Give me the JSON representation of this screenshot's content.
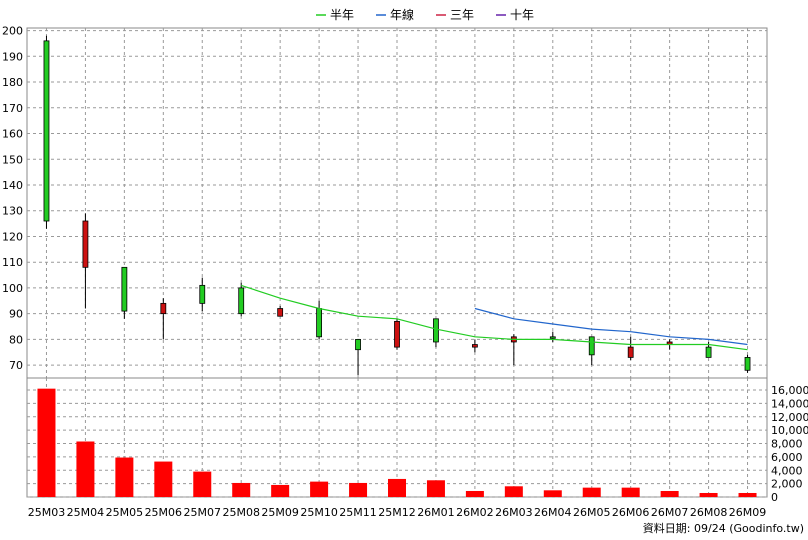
{
  "chart_data": {
    "type": "candlestick",
    "legend": [
      {
        "name": "半年",
        "color": "#22cc22"
      },
      {
        "name": "年線",
        "color": "#2266cc"
      },
      {
        "name": "三年",
        "color": "#cc2244"
      },
      {
        "name": "十年",
        "color": "#6622aa"
      }
    ],
    "categories": [
      "25M03",
      "25M04",
      "25M05",
      "25M06",
      "25M07",
      "25M08",
      "25M09",
      "25M10",
      "25M11",
      "25M12",
      "26M01",
      "26M02",
      "26M03",
      "26M04",
      "26M05",
      "26M06",
      "26M07",
      "26M08",
      "26M09"
    ],
    "ohlc": [
      {
        "open": 126,
        "high": 198,
        "low": 123,
        "close": 196
      },
      {
        "open": 126,
        "high": 129,
        "low": 92,
        "close": 108
      },
      {
        "open": 91,
        "high": 108,
        "low": 88,
        "close": 108
      },
      {
        "open": 94,
        "high": 96,
        "low": 80,
        "close": 90
      },
      {
        "open": 94,
        "high": 104,
        "low": 91,
        "close": 101
      },
      {
        "open": 90,
        "high": 102,
        "low": 89,
        "close": 100
      },
      {
        "open": 92,
        "high": 93,
        "low": 89,
        "close": 89
      },
      {
        "open": 81,
        "high": 95,
        "low": 80,
        "close": 92
      },
      {
        "open": 76,
        "high": 80,
        "low": 66,
        "close": 80
      },
      {
        "open": 87,
        "high": 88,
        "low": 76,
        "close": 77
      },
      {
        "open": 79,
        "high": 88,
        "low": 77,
        "close": 88
      },
      {
        "open": 78,
        "high": 80,
        "low": 75,
        "close": 77
      },
      {
        "open": 81,
        "high": 82,
        "low": 70,
        "close": 79
      },
      {
        "open": 81,
        "high": 83,
        "low": 79,
        "close": 81
      },
      {
        "open": 74,
        "high": 81,
        "low": 70,
        "close": 81
      },
      {
        "open": 77,
        "high": 81,
        "low": 72,
        "close": 73
      },
      {
        "open": 79,
        "high": 80,
        "low": 76,
        "close": 78
      },
      {
        "open": 73,
        "high": 79,
        "low": 73,
        "close": 77
      },
      {
        "open": 68,
        "high": 74,
        "low": 67,
        "close": 73
      }
    ],
    "series": [
      {
        "name": "半年",
        "values": [
          null,
          null,
          null,
          null,
          null,
          101,
          96,
          92,
          89,
          88,
          84,
          81,
          80,
          80,
          79,
          78,
          78,
          78,
          76
        ]
      },
      {
        "name": "年線",
        "values": [
          null,
          null,
          null,
          null,
          null,
          null,
          null,
          null,
          null,
          null,
          null,
          92,
          88,
          86,
          84,
          83,
          81,
          80,
          78
        ]
      }
    ],
    "ylim": [
      65,
      201
    ],
    "yticks": [
      70,
      80,
      90,
      100,
      110,
      120,
      130,
      140,
      150,
      160,
      170,
      180,
      190,
      200
    ],
    "volume": [
      16200,
      8300,
      5900,
      5300,
      3800,
      2100,
      1800,
      2300,
      2100,
      2700,
      2500,
      900,
      1600,
      1000,
      1400,
      1400,
      900,
      600,
      600
    ],
    "volume_ylim": [
      0,
      16000
    ],
    "volume_ticks": [
      "0",
      "2,000",
      "4,000",
      "6,000",
      "8,000",
      "10,000",
      "12,000",
      "14,000",
      "16,000"
    ],
    "grid": true,
    "legend_position": "top-center",
    "footer": "資料日期: 09/24  (Goodinfo.tw)"
  }
}
